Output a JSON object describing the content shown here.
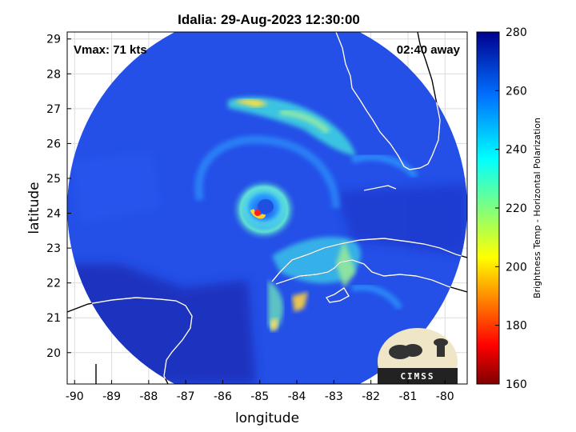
{
  "title": "Idalia: 29-Aug-2023 12:30:00",
  "annotations": {
    "vmax": "Vmax: 71 kts",
    "time_away": "02:40 away"
  },
  "axes": {
    "xlabel": "longitude",
    "ylabel": "latitude",
    "xlim": [
      -90.2,
      -79.4
    ],
    "ylim": [
      19.1,
      29.2
    ],
    "xticks": [
      -90,
      -89,
      -88,
      -87,
      -86,
      -85,
      -84,
      -83,
      -82,
      -81,
      -80
    ],
    "yticks": [
      20,
      21,
      22,
      23,
      24,
      25,
      26,
      27,
      28,
      29
    ],
    "grid": true
  },
  "colorbar": {
    "label": "Brightness Temp - Horizontal Polarization",
    "range": [
      160,
      280
    ],
    "ticks": [
      160,
      180,
      200,
      220,
      240,
      260,
      280
    ],
    "colormap": "jet"
  },
  "storm_center": {
    "lon": -85.0,
    "lat": 23.97
  },
  "logo": {
    "text": "CIMSS"
  },
  "colors": {
    "background_tb": "#1e46e6",
    "coast": "#ffffff",
    "land_coast": "#000000"
  }
}
